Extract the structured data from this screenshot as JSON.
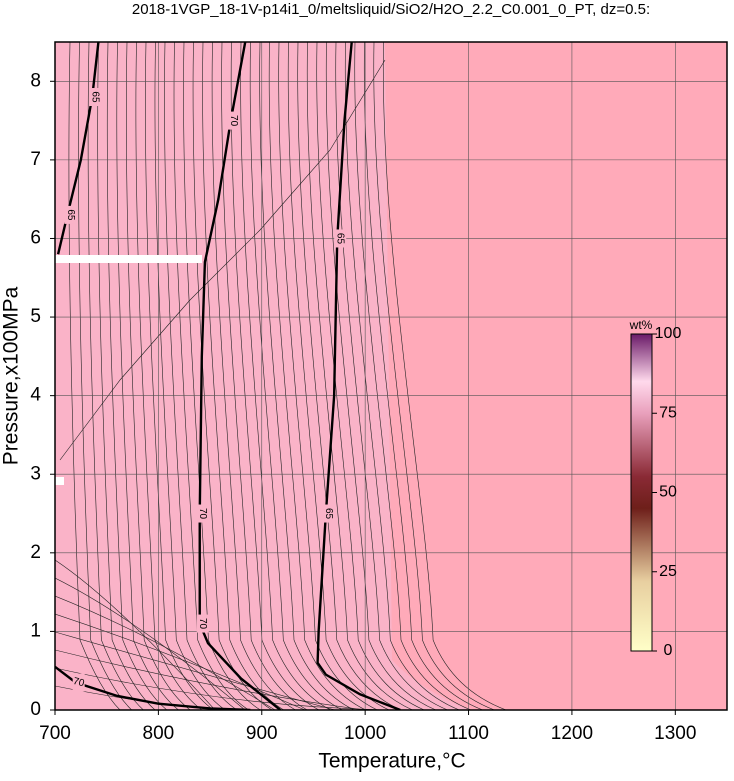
{
  "chart_data": {
    "type": "contour",
    "title": "2018-1VGP_18-1V-p14i1_0/meltsliquid/SiO2/H2O_2.2_C0.001_0_PT, dz=0.5:",
    "x_label": "Temperature,°C",
    "y_label": "Pressure,x100MPa",
    "xlim": [
      700,
      1350
    ],
    "ylim": [
      0,
      8.5
    ],
    "xticks": [
      700,
      800,
      900,
      1000,
      1100,
      1200,
      1300
    ],
    "yticks": [
      0,
      1,
      2,
      3,
      4,
      5,
      6,
      7,
      8
    ],
    "grid": true,
    "contours": [
      {
        "level": 70,
        "color": "#000000",
        "x": [
          884,
          870,
          858,
          845,
          842,
          840,
          840,
          848,
          880,
          918
        ],
        "y": [
          8.5,
          7.5,
          6.5,
          5.7,
          4.5,
          2.5,
          1.1,
          0.85,
          0.4,
          0
        ]
      },
      {
        "level": 65,
        "color": "#000000",
        "x": [
          987,
          980,
          973,
          970,
          962,
          955,
          954,
          962,
          995,
          1034
        ],
        "y": [
          8.5,
          7.5,
          6,
          4,
          2.5,
          1,
          0.6,
          0.45,
          0.2,
          0
        ]
      },
      {
        "level": 70,
        "color": "#000000",
        "x": [
          700,
          720,
          760,
          800,
          850,
          889
        ],
        "y": [
          0.55,
          0.35,
          0.18,
          0.08,
          0.02,
          0
        ]
      },
      {
        "level": 65,
        "color": "#000000",
        "x": [
          742,
          736,
          725,
          712,
          703
        ],
        "y": [
          8.5,
          7.8,
          7,
          6.3,
          5.8
        ]
      }
    ],
    "colorbar_label": "wt%",
    "colorbar_lim": [
      0,
      100
    ],
    "colorbar_ticks": [
      0,
      25,
      50,
      75,
      100
    ]
  }
}
